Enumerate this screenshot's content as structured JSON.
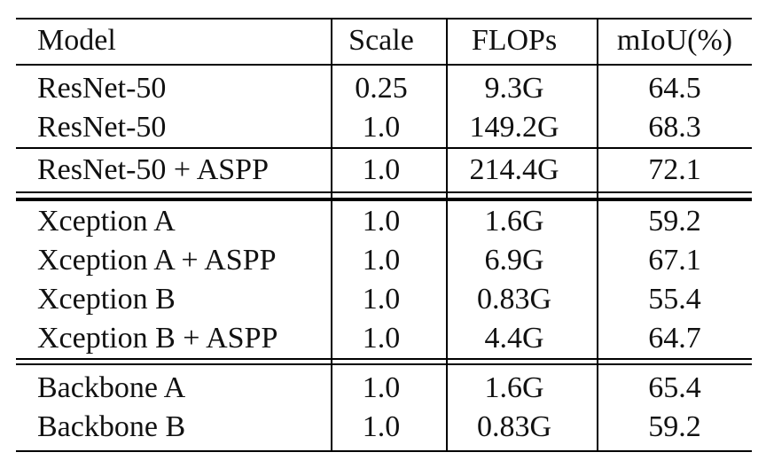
{
  "table": {
    "headers": [
      "Model",
      "Scale",
      "FLOPs",
      "mIoU(%)"
    ],
    "groups": [
      {
        "sections": [
          [
            [
              "ResNet-50",
              "0.25",
              "9.3G",
              "64.5"
            ],
            [
              "ResNet-50",
              "1.0",
              "149.2G",
              "68.3"
            ]
          ],
          [
            [
              "ResNet-50 + ASPP",
              "1.0",
              "214.4G",
              "72.1"
            ]
          ]
        ]
      },
      {
        "sections": [
          [
            [
              "Xception A",
              "1.0",
              "1.6G",
              "59.2"
            ],
            [
              "Xception A + ASPP",
              "1.0",
              "6.9G",
              "67.1"
            ],
            [
              "Xception B",
              "1.0",
              "0.83G",
              "55.4"
            ],
            [
              "Xception B + ASPP",
              "1.0",
              "4.4G",
              "64.7"
            ]
          ]
        ]
      },
      {
        "sections": [
          [
            [
              "Backbone A",
              "1.0",
              "1.6G",
              "65.4"
            ],
            [
              "Backbone B",
              "1.0",
              "0.83G",
              "59.2"
            ]
          ]
        ]
      }
    ]
  }
}
